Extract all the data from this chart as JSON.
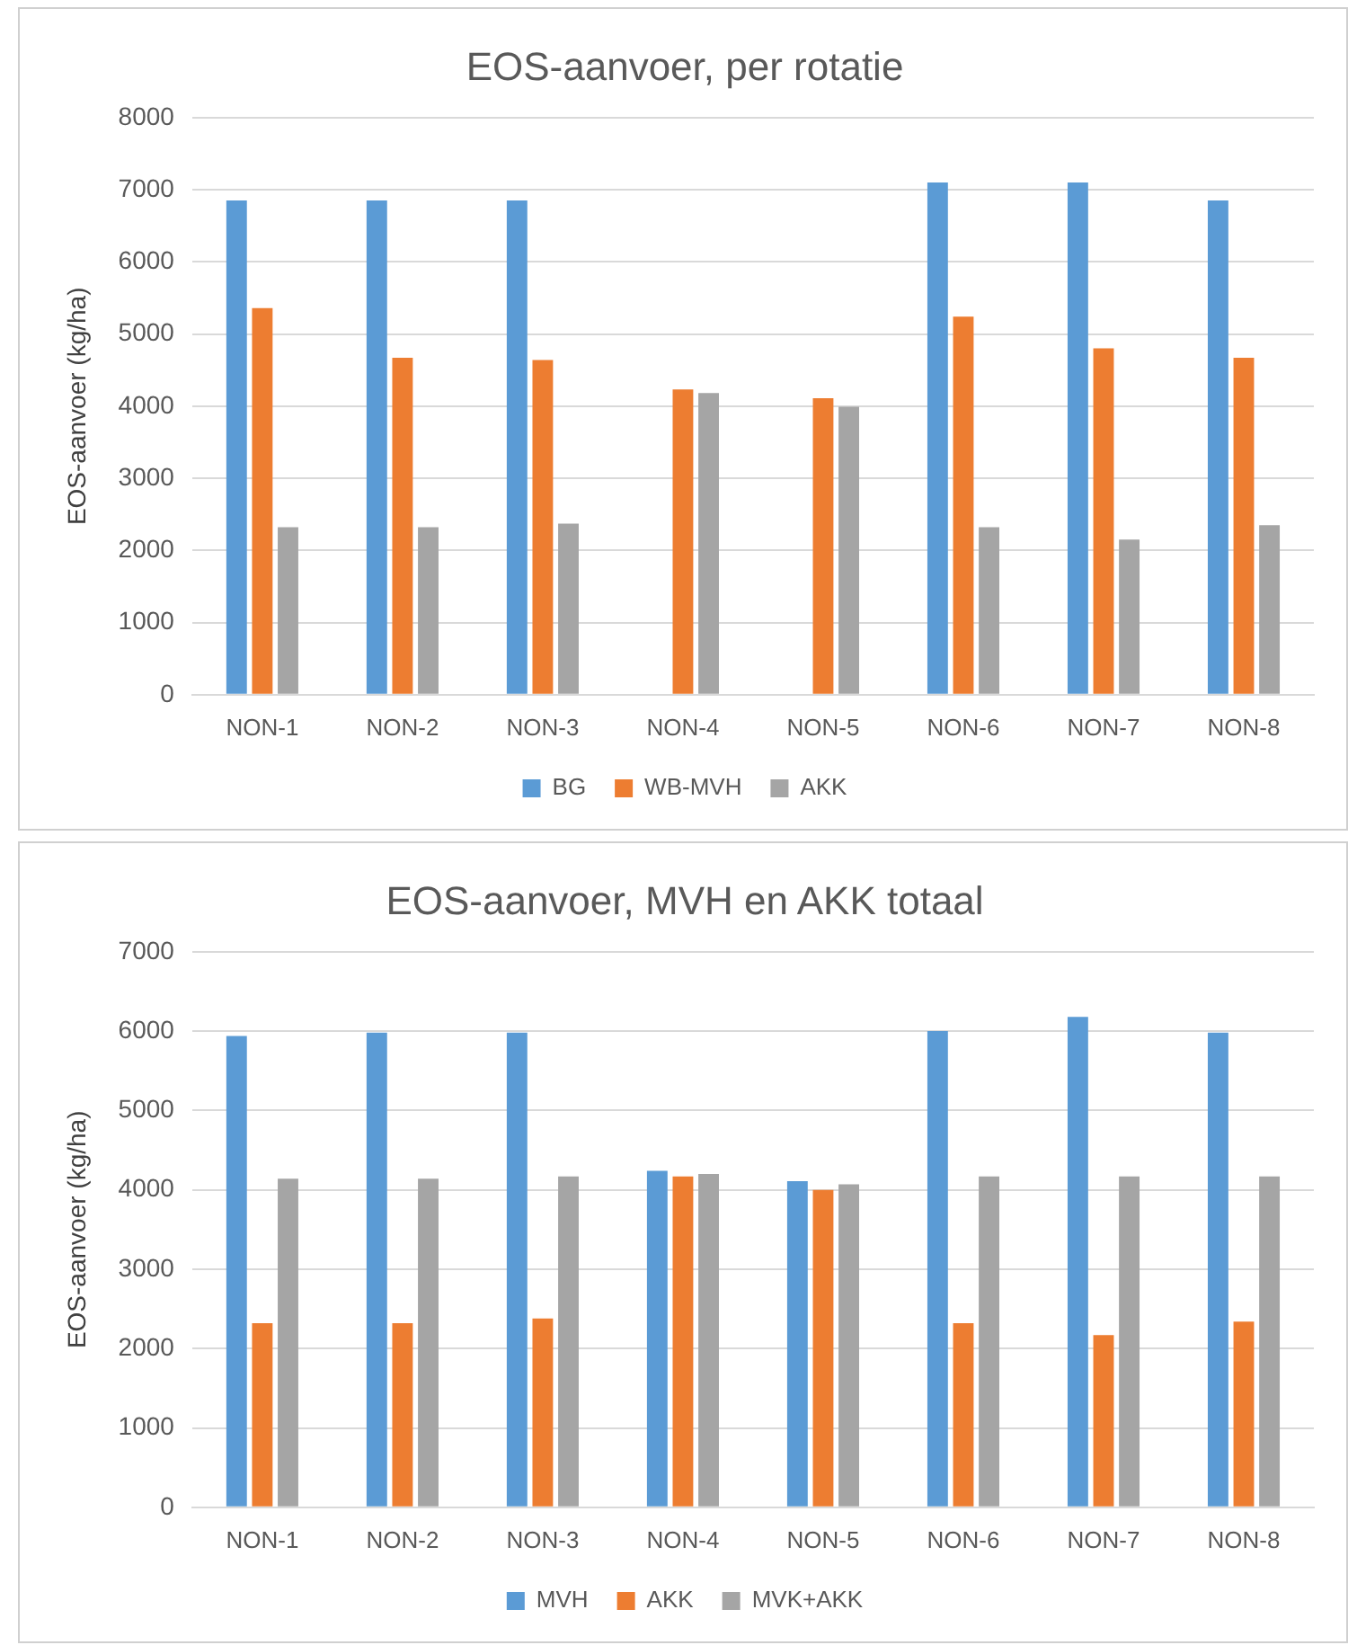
{
  "chart_data": [
    {
      "type": "bar",
      "title": "EOS-aanvoer, per rotatie",
      "ylabel": "EOS-aanvoer (kg/ha)",
      "categories": [
        "NON-1",
        "NON-2",
        "NON-3",
        "NON-4",
        "NON-5",
        "NON-6",
        "NON-7",
        "NON-8"
      ],
      "series": [
        {
          "name": "BG",
          "color": "#5b9bd5",
          "values": [
            6850,
            6850,
            6850,
            null,
            null,
            7100,
            7100,
            6850
          ]
        },
        {
          "name": "WB-MVH",
          "color": "#ed7d31",
          "values": [
            5360,
            4670,
            4640,
            4230,
            4110,
            5240,
            4800,
            4670
          ]
        },
        {
          "name": "AKK",
          "color": "#a5a5a5",
          "values": [
            2320,
            2320,
            2370,
            4180,
            3990,
            2320,
            2150,
            2350
          ]
        }
      ],
      "ylim": [
        0,
        8000
      ],
      "yticks": [
        0,
        1000,
        2000,
        3000,
        4000,
        5000,
        6000,
        7000,
        8000
      ],
      "grid": "y",
      "legend": "bottom"
    },
    {
      "type": "bar",
      "title": "EOS-aanvoer, MVH en AKK totaal",
      "ylabel": "EOS-aanvoer (kg/ha)",
      "categories": [
        "NON-1",
        "NON-2",
        "NON-3",
        "NON-4",
        "NON-5",
        "NON-6",
        "NON-7",
        "NON-8"
      ],
      "series": [
        {
          "name": "MVH",
          "color": "#5b9bd5",
          "values": [
            5940,
            5980,
            5980,
            4240,
            4110,
            6000,
            6180,
            5980
          ]
        },
        {
          "name": "AKK",
          "color": "#ed7d31",
          "values": [
            2320,
            2320,
            2380,
            4170,
            4000,
            2320,
            2170,
            2340
          ]
        },
        {
          "name": "MVK+AKK",
          "color": "#a5a5a5",
          "values": [
            4140,
            4140,
            4170,
            4200,
            4070,
            4170,
            4170,
            4170
          ]
        }
      ],
      "ylim": [
        0,
        7000
      ],
      "yticks": [
        0,
        1000,
        2000,
        3000,
        4000,
        5000,
        6000,
        7000
      ],
      "grid": "y",
      "legend": "bottom"
    }
  ]
}
